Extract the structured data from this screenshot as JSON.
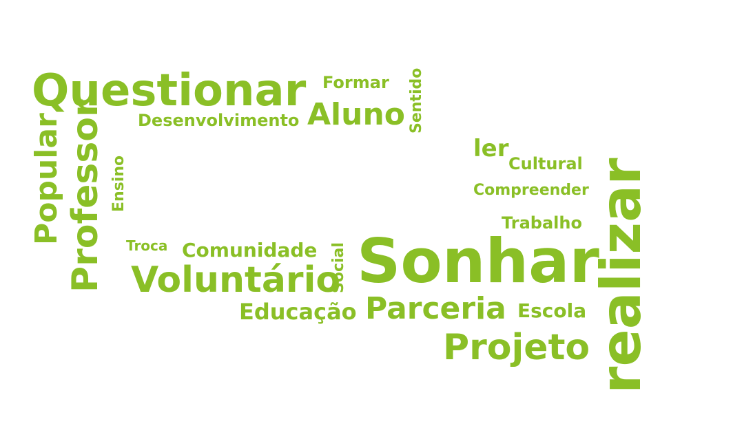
{
  "colors": {
    "word": "#8abf26",
    "background": "#ffffff"
  },
  "words": {
    "questionar": "Questionar",
    "formar": "Formar",
    "aluno": "Aluno",
    "desenvolvimento": "Desenvolvimento",
    "sentido": "Sentido",
    "popular": "Popular",
    "professor": "Professor",
    "ensino": "Ensino",
    "ler": "ler",
    "cultural": "Cultural",
    "compreender": "Compreender",
    "trabalho": "Trabalho",
    "realizar": "realizar",
    "troca": "Troca",
    "comunidade": "Comunidade",
    "voluntario": "Voluntário",
    "social": "Social",
    "sonhar": "Sonhar",
    "educacao": "Educação",
    "parceria": "Parceria",
    "escola": "Escola",
    "projeto": "Projeto"
  }
}
